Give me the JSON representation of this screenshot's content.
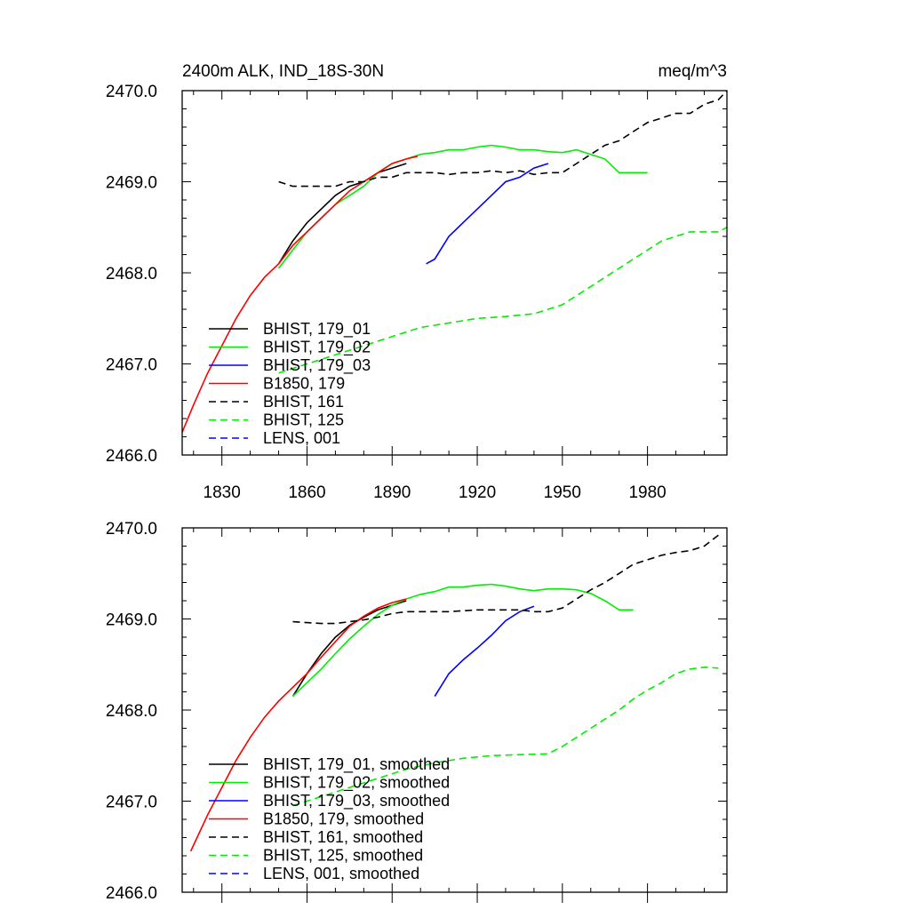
{
  "chart_data": [
    {
      "type": "line",
      "title_left": "2400m ALK, IND_18S-30N",
      "title_right": "meq/m^3",
      "xlabel": "",
      "ylabel": "",
      "xlim": [
        1816,
        2008
      ],
      "ylim": [
        2466.0,
        2470.0
      ],
      "xticks": [
        1830,
        1860,
        1890,
        1920,
        1950,
        1980
      ],
      "xtick_labels": [
        "1830",
        "1860",
        "1890",
        "1920",
        "1950",
        "1980"
      ],
      "yticks": [
        2466.0,
        2467.0,
        2468.0,
        2469.0,
        2470.0
      ],
      "ytick_labels": [
        "2466.0",
        "2467.0",
        "2468.0",
        "2469.0",
        "2470.0"
      ],
      "legend_position": "bottom-left",
      "series": [
        {
          "name": "BHIST, 179_01",
          "color": "#000000",
          "dash": "solid",
          "x": [
            1850,
            1855,
            1860,
            1865,
            1870,
            1875,
            1880,
            1885,
            1890,
            1895
          ],
          "y": [
            2468.1,
            2468.35,
            2468.55,
            2468.7,
            2468.85,
            2468.95,
            2469.0,
            2469.1,
            2469.15,
            2469.2
          ]
        },
        {
          "name": "BHIST, 179_02",
          "color": "#00ee00",
          "dash": "solid",
          "x": [
            1850,
            1855,
            1860,
            1865,
            1870,
            1875,
            1880,
            1885,
            1890,
            1895,
            1900,
            1905,
            1910,
            1915,
            1920,
            1925,
            1930,
            1935,
            1940,
            1945,
            1950,
            1955,
            1960,
            1965,
            1970,
            1975,
            1980
          ],
          "y": [
            2468.05,
            2468.25,
            2468.45,
            2468.6,
            2468.75,
            2468.85,
            2468.95,
            2469.1,
            2469.2,
            2469.25,
            2469.3,
            2469.32,
            2469.35,
            2469.35,
            2469.38,
            2469.4,
            2469.38,
            2469.35,
            2469.35,
            2469.33,
            2469.32,
            2469.35,
            2469.3,
            2469.25,
            2469.1,
            2469.1,
            2469.1
          ]
        },
        {
          "name": "BHIST, 179_03",
          "color": "#0000ff",
          "dash": "solid",
          "x": [
            1902,
            1905,
            1910,
            1915,
            1920,
            1925,
            1930,
            1935,
            1940,
            1945
          ],
          "y": [
            2468.1,
            2468.15,
            2468.4,
            2468.55,
            2468.7,
            2468.85,
            2469.0,
            2469.05,
            2469.15,
            2469.2
          ]
        },
        {
          "name": "B1850, 179",
          "color": "#ff0000",
          "dash": "solid",
          "x": [
            1816,
            1820,
            1825,
            1830,
            1835,
            1840,
            1845,
            1850,
            1855,
            1860,
            1865,
            1870,
            1875,
            1880,
            1885,
            1890,
            1895,
            1899
          ],
          "y": [
            2466.25,
            2466.55,
            2466.9,
            2467.2,
            2467.5,
            2467.75,
            2467.95,
            2468.1,
            2468.3,
            2468.45,
            2468.6,
            2468.75,
            2468.9,
            2469.0,
            2469.1,
            2469.2,
            2469.25,
            2469.28
          ]
        },
        {
          "name": "BHIST, 161",
          "color": "#000000",
          "dash": "dashed",
          "x": [
            1850,
            1855,
            1860,
            1865,
            1870,
            1875,
            1880,
            1885,
            1890,
            1895,
            1900,
            1905,
            1910,
            1915,
            1920,
            1925,
            1930,
            1935,
            1940,
            1945,
            1950,
            1955,
            1960,
            1965,
            1970,
            1975,
            1980,
            1985,
            1990,
            1995,
            2000,
            2005,
            2008
          ],
          "y": [
            2469.0,
            2468.95,
            2468.95,
            2468.95,
            2468.95,
            2469.0,
            2469.0,
            2469.05,
            2469.05,
            2469.1,
            2469.1,
            2469.1,
            2469.08,
            2469.1,
            2469.1,
            2469.12,
            2469.1,
            2469.12,
            2469.08,
            2469.1,
            2469.1,
            2469.2,
            2469.3,
            2469.4,
            2469.45,
            2469.55,
            2469.65,
            2469.7,
            2469.75,
            2469.75,
            2469.85,
            2469.9,
            2470.0
          ]
        },
        {
          "name": "BHIST, 125",
          "color": "#00ee00",
          "dash": "dashed",
          "x": [
            1850,
            1860,
            1870,
            1880,
            1890,
            1900,
            1910,
            1920,
            1930,
            1940,
            1950,
            1955,
            1960,
            1965,
            1970,
            1975,
            1980,
            1985,
            1990,
            1995,
            2000,
            2005,
            2008
          ],
          "y": [
            2466.9,
            2467.0,
            2467.1,
            2467.2,
            2467.3,
            2467.4,
            2467.45,
            2467.5,
            2467.52,
            2467.55,
            2467.65,
            2467.75,
            2467.85,
            2467.95,
            2468.05,
            2468.15,
            2468.25,
            2468.35,
            2468.4,
            2468.45,
            2468.45,
            2468.45,
            2468.5
          ]
        },
        {
          "name": "LENS, 001",
          "color": "#0000ff",
          "dash": "dashed",
          "x": [],
          "y": []
        }
      ]
    },
    {
      "type": "line",
      "xlabel": "",
      "ylabel": "",
      "xlim": [
        1816,
        2008
      ],
      "ylim": [
        2466.0,
        2470.0
      ],
      "xticks": [
        1830,
        1860,
        1890,
        1920,
        1950,
        1980
      ],
      "yticks": [
        2466.0,
        2467.0,
        2468.0,
        2469.0,
        2470.0
      ],
      "ytick_labels": [
        "2466.0",
        "2467.0",
        "2468.0",
        "2469.0",
        "2470.0"
      ],
      "legend_position": "bottom-left",
      "series": [
        {
          "name": "BHIST, 179_01, smoothed",
          "color": "#000000",
          "dash": "solid",
          "x": [
            1855,
            1860,
            1865,
            1870,
            1875,
            1880,
            1885,
            1890,
            1895
          ],
          "y": [
            2468.15,
            2468.4,
            2468.62,
            2468.8,
            2468.93,
            2469.02,
            2469.1,
            2469.15,
            2469.2
          ]
        },
        {
          "name": "BHIST, 179_02, smoothed",
          "color": "#00ee00",
          "dash": "solid",
          "x": [
            1855,
            1860,
            1865,
            1870,
            1875,
            1880,
            1885,
            1890,
            1895,
            1900,
            1905,
            1910,
            1915,
            1920,
            1925,
            1930,
            1935,
            1940,
            1945,
            1950,
            1955,
            1960,
            1965,
            1970,
            1975
          ],
          "y": [
            2468.15,
            2468.3,
            2468.45,
            2468.62,
            2468.78,
            2468.92,
            2469.05,
            2469.15,
            2469.22,
            2469.27,
            2469.3,
            2469.35,
            2469.35,
            2469.37,
            2469.38,
            2469.36,
            2469.33,
            2469.31,
            2469.33,
            2469.33,
            2469.32,
            2469.28,
            2469.2,
            2469.1,
            2469.1
          ]
        },
        {
          "name": "BHIST, 179_03, smoothed",
          "color": "#0000ff",
          "dash": "solid",
          "x": [
            1905,
            1910,
            1915,
            1920,
            1925,
            1930,
            1935,
            1940
          ],
          "y": [
            2468.15,
            2468.4,
            2468.55,
            2468.68,
            2468.82,
            2468.98,
            2469.08,
            2469.14
          ]
        },
        {
          "name": "B1850, 179, smoothed",
          "color": "#ff0000",
          "dash": "solid",
          "x": [
            1819,
            1825,
            1830,
            1835,
            1840,
            1845,
            1850,
            1855,
            1860,
            1865,
            1870,
            1875,
            1880,
            1885,
            1890,
            1895
          ],
          "y": [
            2466.45,
            2466.85,
            2467.15,
            2467.45,
            2467.7,
            2467.92,
            2468.1,
            2468.25,
            2468.4,
            2468.58,
            2468.75,
            2468.92,
            2469.03,
            2469.12,
            2469.18,
            2469.22
          ]
        },
        {
          "name": "BHIST, 161, smoothed",
          "color": "#000000",
          "dash": "dashed",
          "x": [
            1855,
            1860,
            1865,
            1870,
            1875,
            1880,
            1885,
            1890,
            1895,
            1900,
            1905,
            1910,
            1915,
            1920,
            1925,
            1930,
            1935,
            1940,
            1945,
            1950,
            1955,
            1960,
            1965,
            1970,
            1975,
            1980,
            1985,
            1990,
            1995,
            2000,
            2005
          ],
          "y": [
            2468.97,
            2468.96,
            2468.95,
            2468.95,
            2468.97,
            2468.99,
            2469.02,
            2469.06,
            2469.08,
            2469.08,
            2469.08,
            2469.08,
            2469.09,
            2469.1,
            2469.1,
            2469.1,
            2469.1,
            2469.08,
            2469.08,
            2469.12,
            2469.22,
            2469.32,
            2469.4,
            2469.5,
            2469.6,
            2469.65,
            2469.7,
            2469.73,
            2469.75,
            2469.8,
            2469.92
          ]
        },
        {
          "name": "BHIST, 125, smoothed",
          "color": "#00ee00",
          "dash": "dashed",
          "x": [
            1855,
            1865,
            1875,
            1885,
            1895,
            1905,
            1915,
            1925,
            1935,
            1945,
            1950,
            1955,
            1960,
            1965,
            1970,
            1975,
            1980,
            1985,
            1990,
            1995,
            2000,
            2005
          ],
          "y": [
            2466.95,
            2467.05,
            2467.15,
            2467.25,
            2467.35,
            2467.42,
            2467.47,
            2467.5,
            2467.51,
            2467.52,
            2467.6,
            2467.7,
            2467.8,
            2467.9,
            2468.0,
            2468.12,
            2468.22,
            2468.3,
            2468.4,
            2468.45,
            2468.47,
            2468.46
          ]
        },
        {
          "name": "LENS, 001, smoothed",
          "color": "#0000ff",
          "dash": "dashed",
          "x": [],
          "y": []
        }
      ]
    }
  ]
}
